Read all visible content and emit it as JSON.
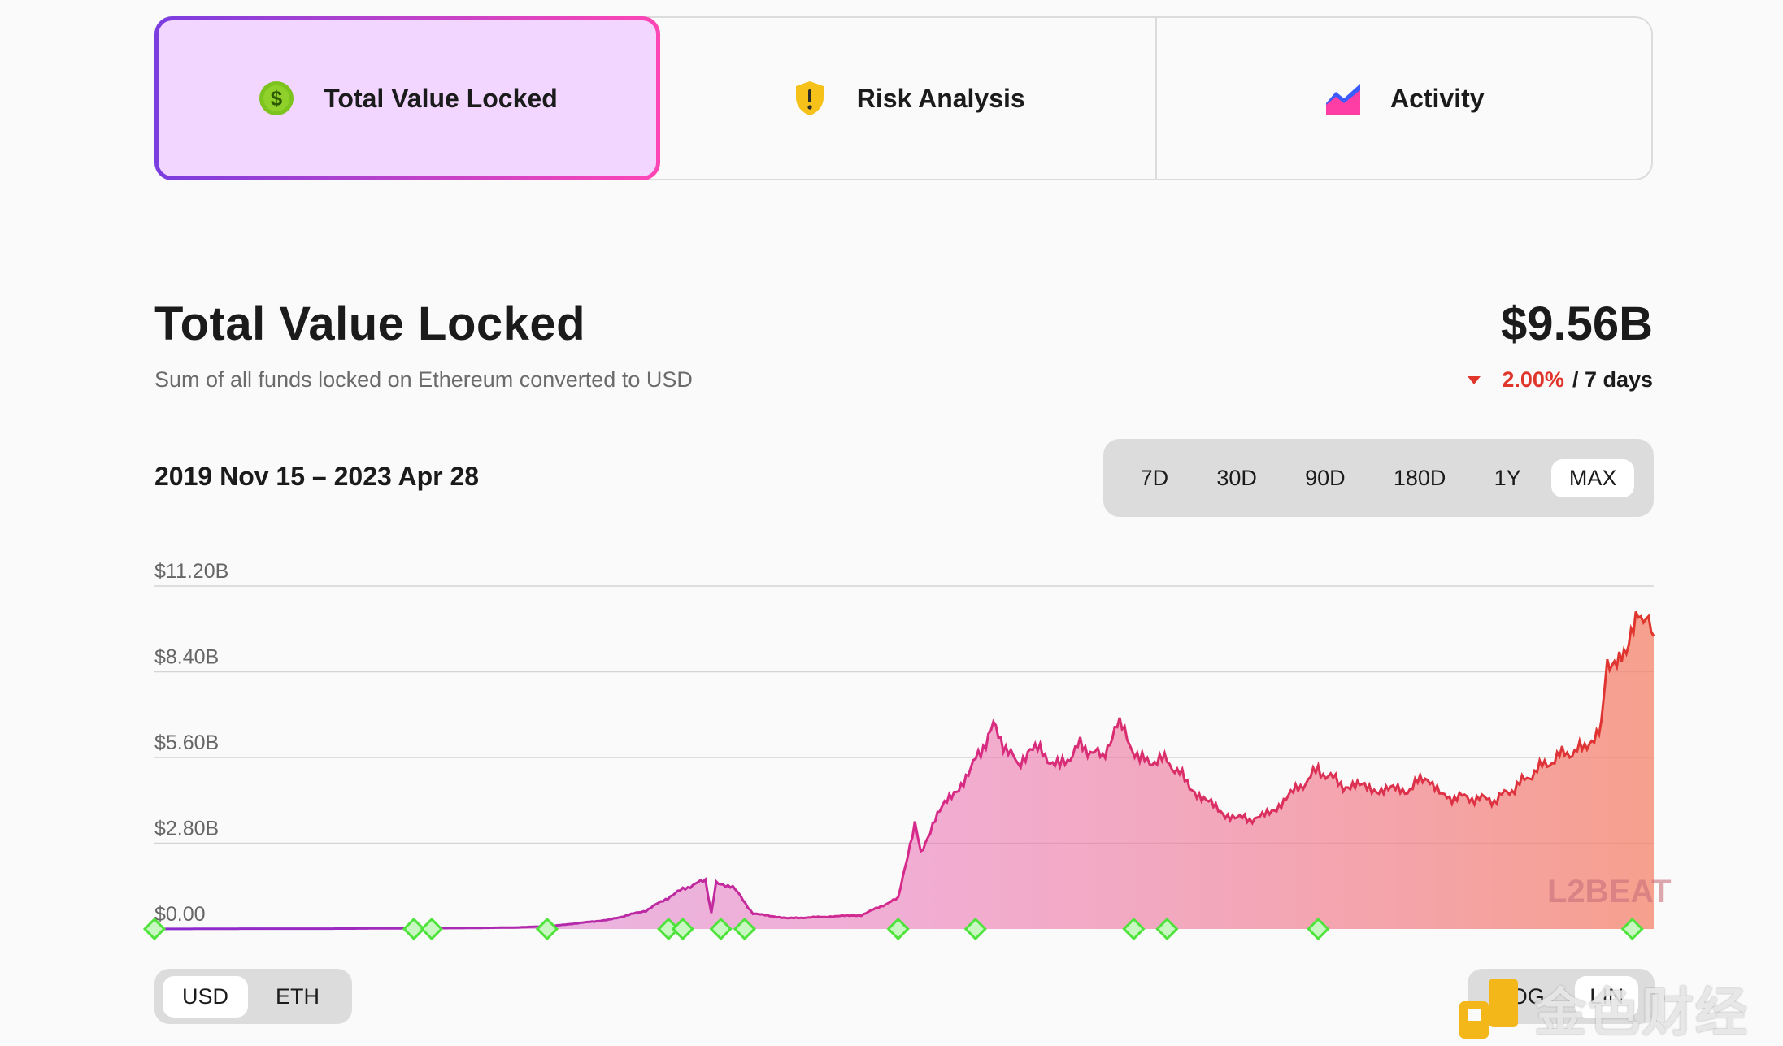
{
  "tabs": [
    {
      "label": "Total Value Locked",
      "icon": "dollar-coin-icon",
      "active": true
    },
    {
      "label": "Risk Analysis",
      "icon": "shield-warning-icon",
      "active": false
    },
    {
      "label": "Activity",
      "icon": "activity-chart-icon",
      "active": false
    }
  ],
  "header": {
    "title": "Total Value Locked",
    "subtitle": "Sum of all funds locked on Ethereum converted to USD",
    "value": "$9.56B",
    "change": "2.00%",
    "change_period": "/ 7 days"
  },
  "range_label": "2019 Nov 15 – 2023 Apr 28",
  "periods": [
    "7D",
    "30D",
    "90D",
    "180D",
    "1Y",
    "MAX"
  ],
  "active_period": "MAX",
  "currency": {
    "options": [
      "USD",
      "ETH"
    ],
    "active": "USD"
  },
  "scale": {
    "options": [
      "LOG",
      "LIN"
    ],
    "active": "LIN"
  },
  "watermark": {
    "chart": "L2BEAT",
    "brand": "金色财经"
  },
  "colors": {
    "accent_start": "#7a3de0",
    "accent_end": "#ff46b4",
    "negative": "#e0352b",
    "milestone": "#4ee33b"
  },
  "chart_data": {
    "type": "area",
    "title": "",
    "xlabel": "",
    "ylabel": "",
    "ylim": [
      0,
      11.2
    ],
    "y_unit": "B USD",
    "ytick_labels": [
      "$0.00",
      "$2.80B",
      "$5.60B",
      "$8.40B",
      "$11.20B"
    ],
    "ytick_values": [
      0,
      2.8,
      5.6,
      8.4,
      11.2
    ],
    "grid": true,
    "legend": "none",
    "x": [
      "2019-11-15",
      "2020-02-01",
      "2020-04-01",
      "2020-06-01",
      "2020-08-01",
      "2020-09-15",
      "2020-10-15",
      "2020-12-01",
      "2021-01-01",
      "2021-02-01",
      "2021-02-20",
      "2021-02-25",
      "2021-03-01",
      "2021-03-15",
      "2021-04-01",
      "2021-05-01",
      "2021-06-01",
      "2021-07-01",
      "2021-08-01",
      "2021-08-15",
      "2021-08-20",
      "2021-09-01",
      "2021-10-01",
      "2021-10-20",
      "2021-11-10",
      "2021-11-20",
      "2021-12-15",
      "2022-01-01",
      "2022-01-20",
      "2022-02-01",
      "2022-02-20",
      "2022-03-15",
      "2022-04-01",
      "2022-04-15",
      "2022-05-01",
      "2022-05-15",
      "2022-06-01",
      "2022-06-15",
      "2022-07-01",
      "2022-07-20",
      "2022-08-10",
      "2022-09-01",
      "2022-10-01",
      "2022-10-20",
      "2022-11-01",
      "2022-11-20",
      "2022-12-15",
      "2023-01-01",
      "2023-01-20",
      "2023-02-10",
      "2023-03-01",
      "2023-03-15",
      "2023-03-20",
      "2023-04-05",
      "2023-04-15",
      "2023-04-28"
    ],
    "values": [
      0.0,
      0.01,
      0.01,
      0.02,
      0.03,
      0.05,
      0.1,
      0.3,
      0.6,
      1.3,
      1.6,
      0.5,
      1.5,
      1.4,
      0.5,
      0.35,
      0.4,
      0.45,
      1.0,
      3.5,
      2.5,
      3.6,
      5.2,
      6.6,
      5.3,
      6.0,
      5.3,
      6.0,
      5.6,
      6.8,
      5.5,
      5.5,
      4.8,
      4.2,
      3.8,
      3.6,
      3.6,
      4.0,
      4.5,
      5.2,
      4.7,
      4.6,
      4.5,
      5.0,
      4.3,
      4.3,
      4.2,
      4.6,
      5.2,
      5.7,
      5.9,
      6.7,
      8.8,
      8.8,
      10.5,
      9.56
    ],
    "milestone_dates": [
      "2019-11-15",
      "2020-06-20",
      "2020-07-05",
      "2020-10-10",
      "2021-01-20",
      "2021-02-01",
      "2021-03-05",
      "2021-03-25",
      "2021-08-01",
      "2021-10-05",
      "2022-02-15",
      "2022-03-15",
      "2022-07-20",
      "2023-04-10"
    ]
  }
}
